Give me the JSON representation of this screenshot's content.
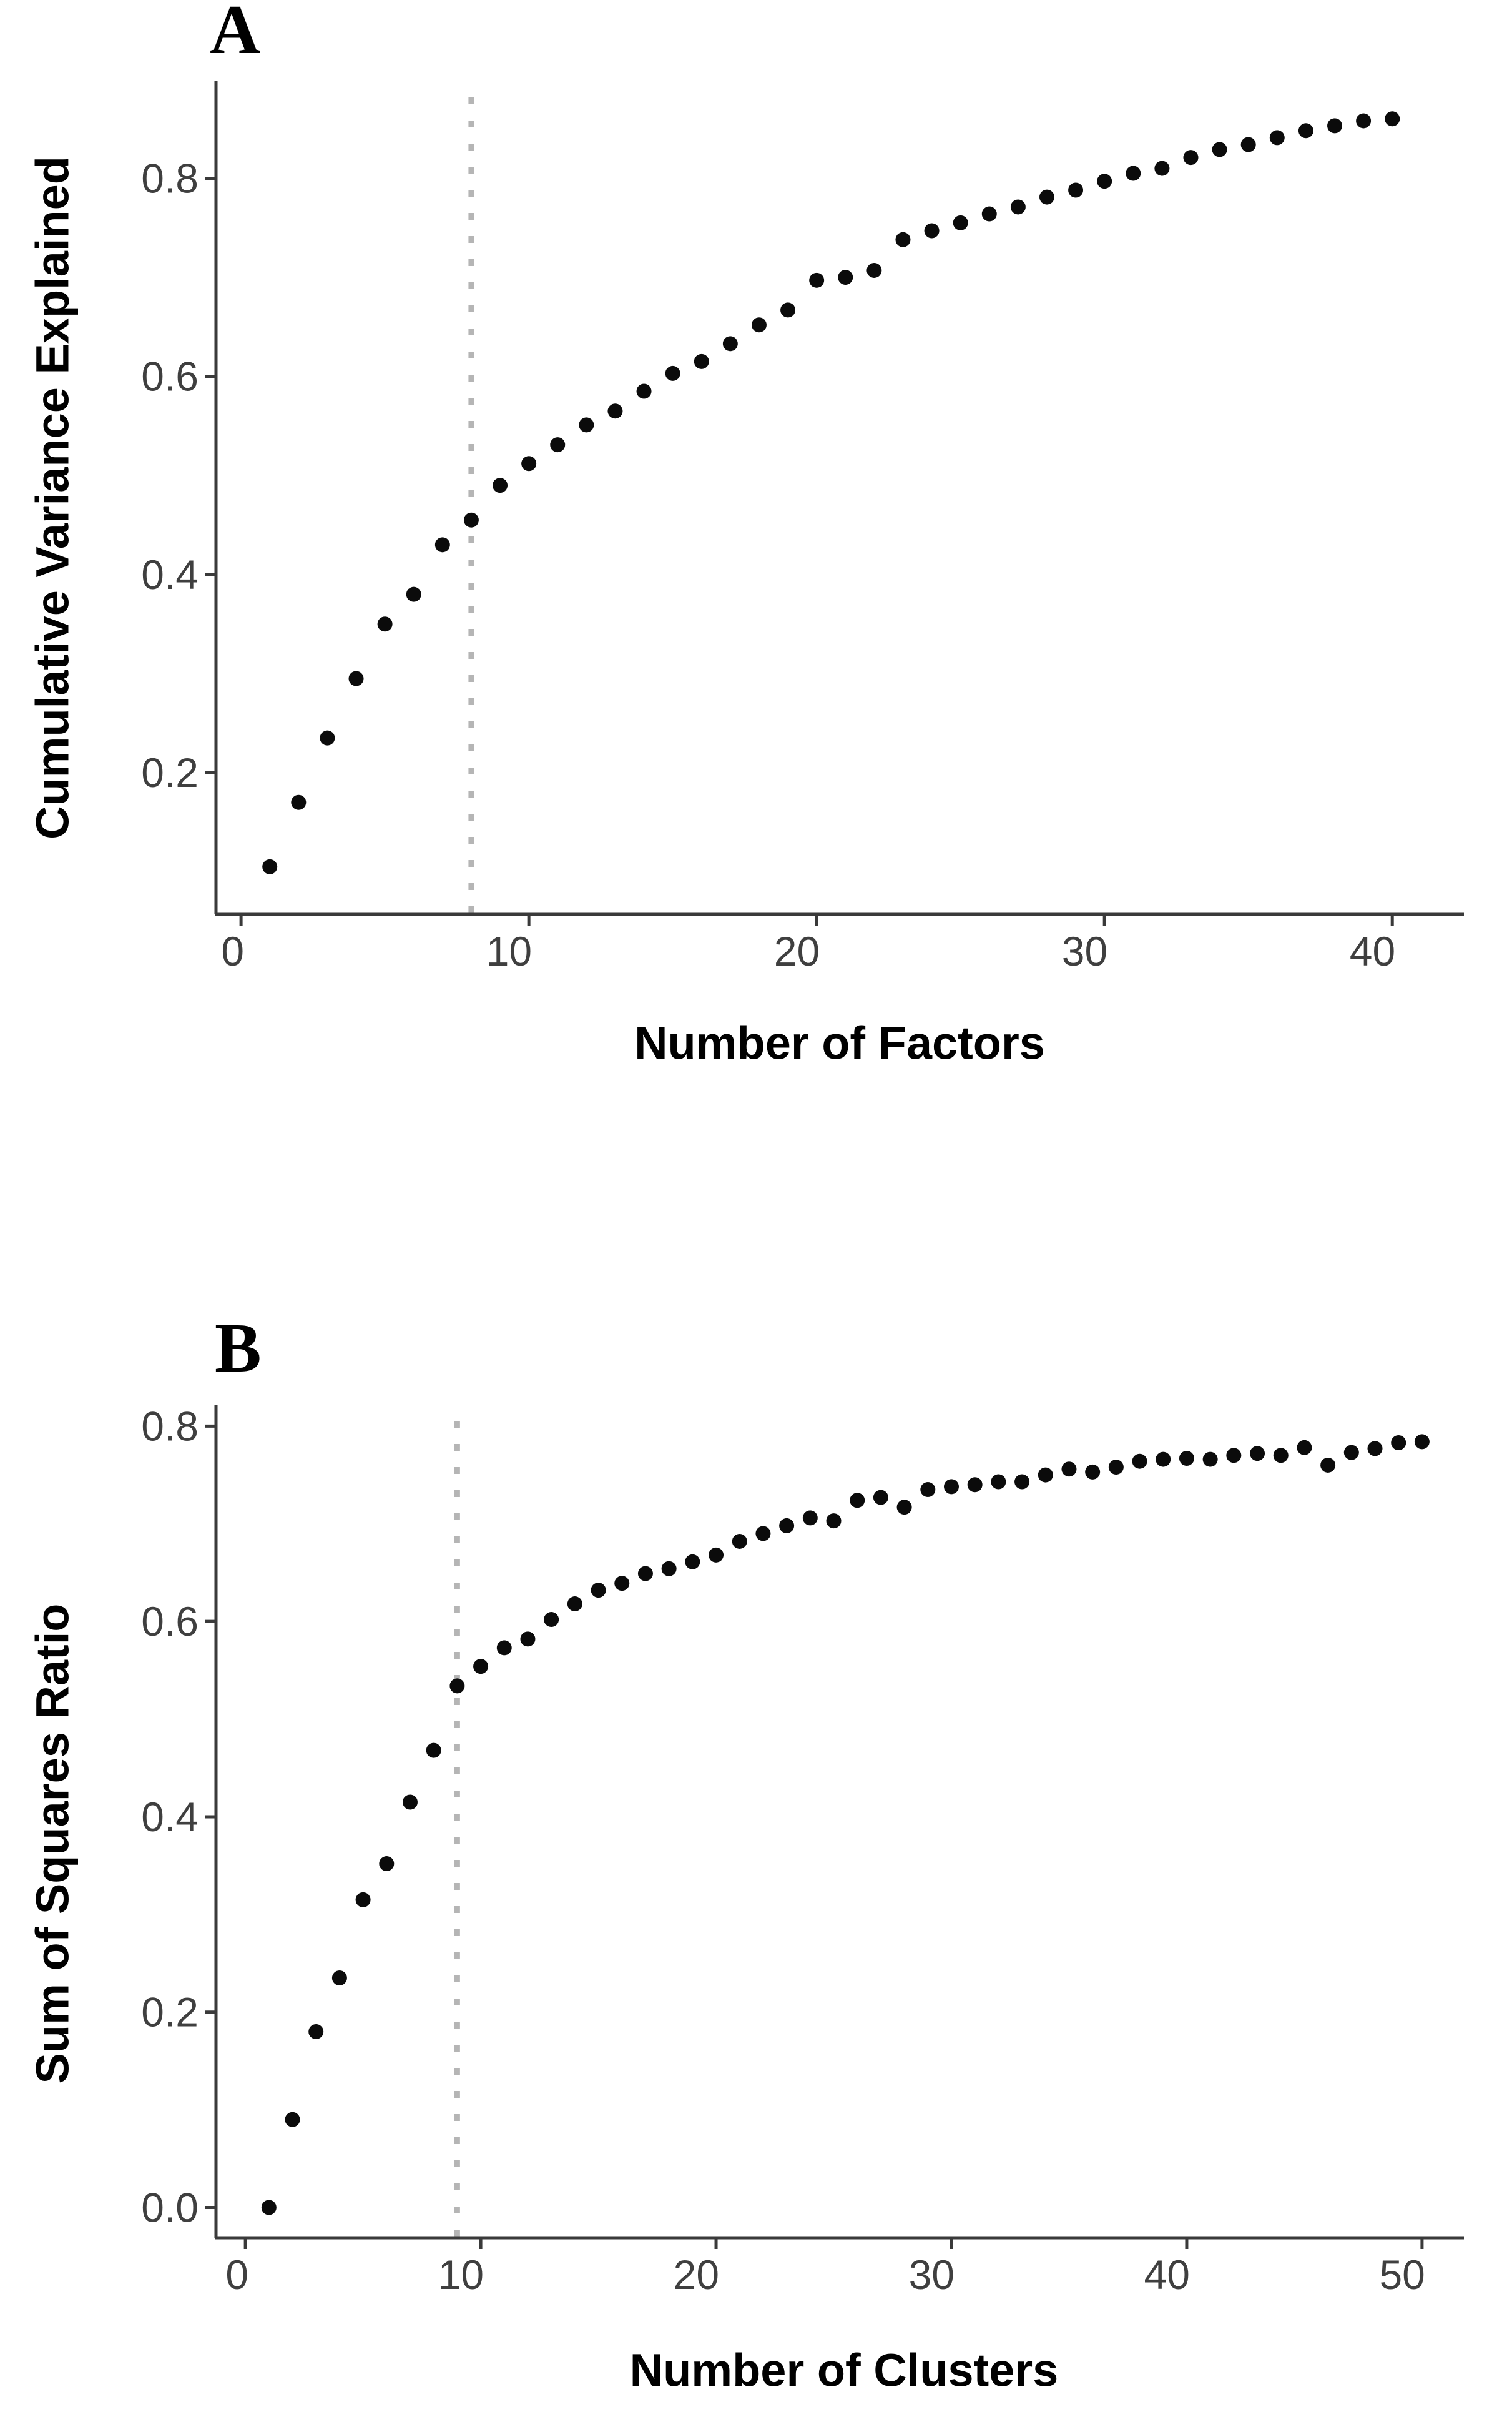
{
  "figure": {
    "description": "Two-panel scree-style scatter figure",
    "background": "#ffffff"
  },
  "colors": {
    "axis": "#3a3a3a",
    "tick_label": "#3f3f3f",
    "title": "#000000",
    "point": "#0b0b0b",
    "cutoff_line": "#b5b5b5",
    "background": "#ffffff"
  },
  "chart_data": [
    {
      "type": "scatter",
      "panel_label": "A",
      "xlabel": "Number of Factors",
      "ylabel": "Cumulative Variance Explained",
      "xticks": [
        "0",
        "10",
        "20",
        "30",
        "40"
      ],
      "yticks": [
        "0.8",
        "0.6",
        "0.4",
        "0.2"
      ],
      "xlim": [
        -0.87,
        42.49
      ],
      "ylim": [
        0.057,
        0.898
      ],
      "grid": false,
      "legend": "none",
      "vline_x": 8,
      "vline_style": "dotted",
      "point_color": "#0b0b0b",
      "vline_color": "#b5b5b5",
      "x": [
        1,
        2,
        3,
        4,
        5,
        6,
        7,
        8,
        9,
        10,
        11,
        12,
        13,
        14,
        15,
        16,
        17,
        18,
        19,
        20,
        21,
        22,
        23,
        24,
        25,
        26,
        27,
        28,
        29,
        30,
        31,
        32,
        33,
        34,
        35,
        36,
        37,
        38,
        39,
        40
      ],
      "y": [
        0.105,
        0.17,
        0.235,
        0.295,
        0.35,
        0.38,
        0.43,
        0.455,
        0.49,
        0.512,
        0.531,
        0.551,
        0.565,
        0.585,
        0.603,
        0.615,
        0.633,
        0.652,
        0.667,
        0.697,
        0.7,
        0.707,
        0.738,
        0.747,
        0.755,
        0.764,
        0.771,
        0.781,
        0.788,
        0.797,
        0.805,
        0.81,
        0.821,
        0.829,
        0.834,
        0.841,
        0.848,
        0.853,
        0.858,
        0.86
      ]
    },
    {
      "type": "scatter",
      "panel_label": "B",
      "xlabel": "Number of Clusters",
      "ylabel": "Sum of Squares Ratio",
      "xticks": [
        "0",
        "10",
        "20",
        "30",
        "40",
        "50"
      ],
      "yticks": [
        "0.8",
        "0.6",
        "0.4",
        "0.2",
        "0.0"
      ],
      "xlim": [
        -1.25,
        51.78
      ],
      "ylim": [
        -0.031,
        0.822
      ],
      "grid": false,
      "legend": "none",
      "vline_x": 9,
      "vline_style": "dotted",
      "point_color": "#0b0b0b",
      "vline_color": "#b5b5b5",
      "x": [
        1,
        2,
        3,
        4,
        5,
        6,
        7,
        8,
        9,
        10,
        11,
        12,
        13,
        14,
        15,
        16,
        17,
        18,
        19,
        20,
        21,
        22,
        23,
        24,
        25,
        26,
        27,
        28,
        29,
        30,
        31,
        32,
        33,
        34,
        35,
        36,
        37,
        38,
        39,
        40,
        41,
        42,
        43,
        44,
        45,
        46,
        47,
        48,
        49,
        50
      ],
      "y": [
        0.0,
        0.09,
        0.18,
        0.235,
        0.315,
        0.352,
        0.415,
        0.468,
        0.534,
        0.554,
        0.573,
        0.582,
        0.602,
        0.618,
        0.632,
        0.639,
        0.649,
        0.654,
        0.661,
        0.668,
        0.682,
        0.69,
        0.698,
        0.706,
        0.703,
        0.724,
        0.727,
        0.717,
        0.735,
        0.738,
        0.74,
        0.743,
        0.743,
        0.75,
        0.756,
        0.753,
        0.758,
        0.764,
        0.766,
        0.767,
        0.766,
        0.77,
        0.772,
        0.77,
        0.778,
        0.76,
        0.773,
        0.777,
        0.783,
        0.784
      ]
    }
  ]
}
